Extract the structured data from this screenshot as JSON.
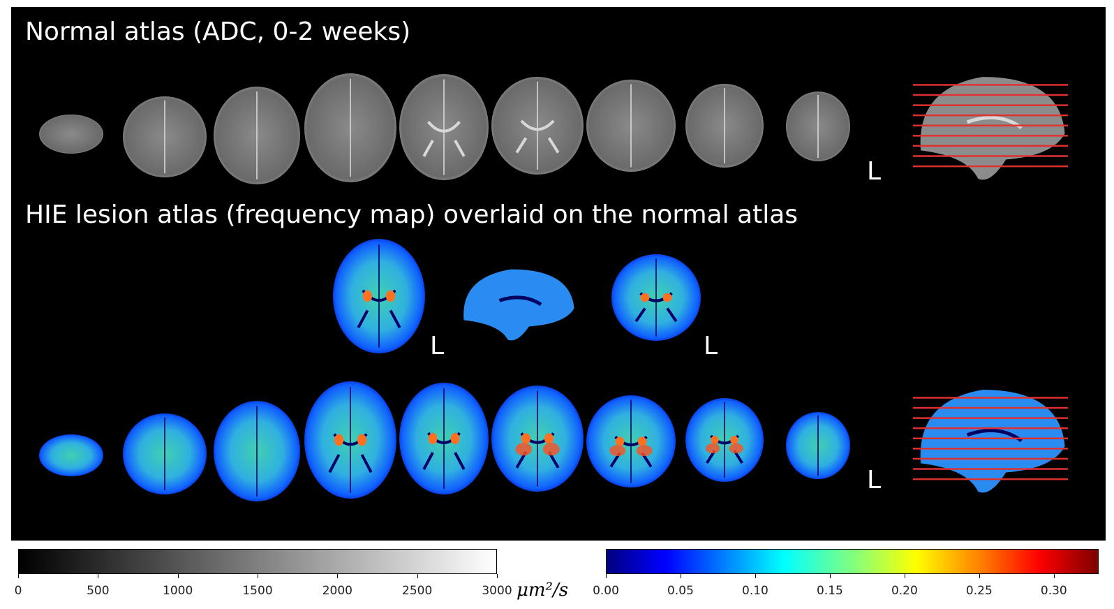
{
  "titles": {
    "normal": "Normal atlas (ADC, 0-2 weeks)",
    "lesion": "HIE lesion atlas (frequency map) overlaid on the normal atlas"
  },
  "orientation_label": "L",
  "colorbars": {
    "adc": {
      "colormap": "gray",
      "ticks": [
        "0",
        "500",
        "1000",
        "1500",
        "2000",
        "2500",
        "3000"
      ],
      "range": [
        0,
        3000
      ],
      "unit": "μm²/s"
    },
    "frequency": {
      "colormap": "jet",
      "ticks": [
        "0.00",
        "0.05",
        "0.10",
        "0.15",
        "0.20",
        "0.25",
        "0.30"
      ],
      "range": [
        0,
        0.33
      ]
    }
  },
  "colors": {
    "background": "#000000",
    "slice_line": "#e03030",
    "text": "#ffffff"
  }
}
